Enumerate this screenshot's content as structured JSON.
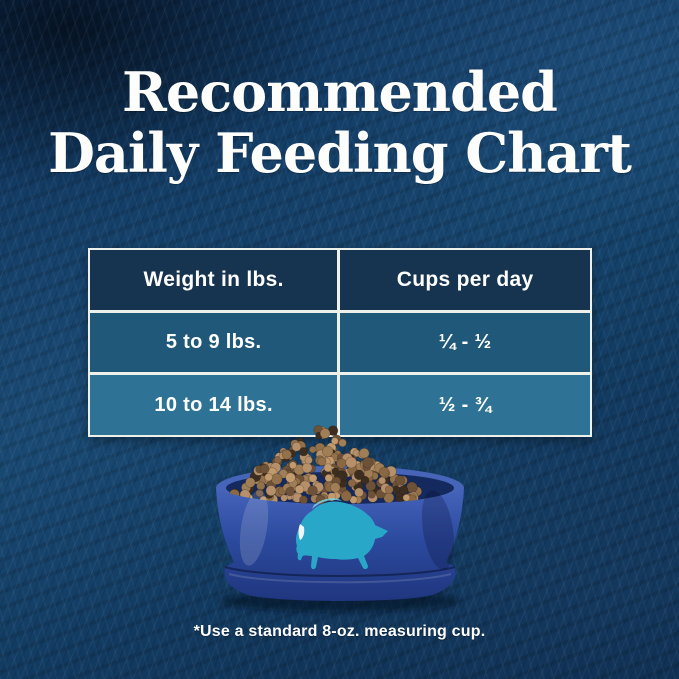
{
  "page": {
    "title_line1": "Recommended",
    "title_line2": "Daily Feeding Chart",
    "footnote": "*Use a standard 8-oz. measuring cup."
  },
  "chart_data": {
    "type": "table",
    "title": "Recommended Daily Feeding Chart",
    "columns": [
      "Weight in lbs.",
      "Cups per day"
    ],
    "rows": [
      [
        "5 to 9 lbs.",
        "¼ - ½"
      ],
      [
        "10 to 14 lbs.",
        "½ - ¾"
      ]
    ],
    "footnote": "*Use a standard 8-oz. measuring cup."
  },
  "illustration": {
    "description": "blue dog bowl filled with kibble, teal leaping buffalo logo on front",
    "buffalo_icon": "buffalo-logo"
  },
  "colors": {
    "background_navy": "#12395f",
    "table_header_bg": "#16344f",
    "table_row1_bg": "#1f5878",
    "table_row2_bg": "#2e7396",
    "table_border": "#eef0ea",
    "text_white": "#ffffff",
    "bowl_blue": "#2c4a9e",
    "bowl_blue_dark": "#20367f",
    "buffalo_teal": "#29a7c8",
    "kibble_palette": [
      "#b5906a",
      "#a07e56",
      "#8a6844",
      "#c19a6e",
      "#6e5238",
      "#93714a"
    ],
    "kibble_dark": "#3b2d20"
  }
}
